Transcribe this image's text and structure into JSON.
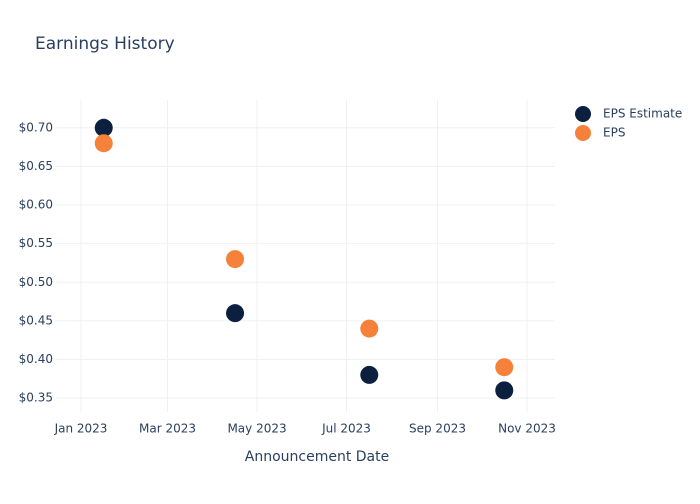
{
  "chart_data": {
    "type": "scatter",
    "title": "Earnings History",
    "x_label": "Announcement Date",
    "x": [
      "2023-01",
      "2023-04",
      "2023-07",
      "2023-10"
    ],
    "series": [
      {
        "name": "EPS Estimate",
        "color": "#0c1f3f",
        "values": [
          0.7,
          0.46,
          0.38,
          0.36
        ]
      },
      {
        "name": "EPS",
        "color": "#f5813a",
        "values": [
          0.68,
          0.53,
          0.44,
          0.39
        ]
      }
    ],
    "xticks": [
      {
        "value": "2023-01",
        "label": "Jan 2023"
      },
      {
        "value": "2023-03",
        "label": "Mar 2023"
      },
      {
        "value": "2023-05",
        "label": "May 2023"
      },
      {
        "value": "2023-07",
        "label": "Jul 2023"
      },
      {
        "value": "2023-09",
        "label": "Sep 2023"
      },
      {
        "value": "2023-11",
        "label": "Nov 2023"
      }
    ],
    "ylim": [
      0.332,
      0.736
    ],
    "yticks": [
      {
        "value": 0.35,
        "label": "$0.35"
      },
      {
        "value": 0.4,
        "label": "$0.40"
      },
      {
        "value": 0.45,
        "label": "$0.45"
      },
      {
        "value": 0.5,
        "label": "$0.50"
      },
      {
        "value": 0.55,
        "label": "$0.55"
      },
      {
        "value": 0.6,
        "label": "$0.60"
      },
      {
        "value": 0.65,
        "label": "$0.65"
      },
      {
        "value": 0.7,
        "label": "$0.70"
      }
    ],
    "grid": true,
    "legend": "top-right"
  }
}
